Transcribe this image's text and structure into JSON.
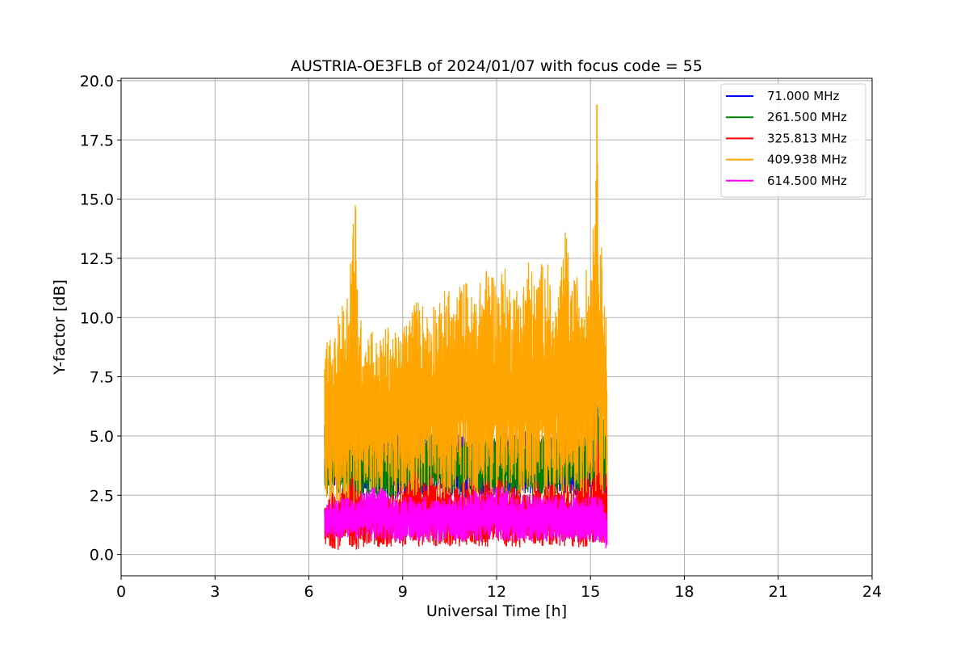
{
  "chart_data": {
    "type": "line",
    "title": "AUSTRIA-OE3FLB of 2024/01/07 with focus code = 55",
    "xlabel": "Universal Time [h]",
    "ylabel": "Y-factor [dB]",
    "xlim": [
      0,
      24
    ],
    "ylim": [
      -0.9,
      20.1
    ],
    "xticks": [
      0,
      3,
      6,
      9,
      12,
      15,
      18,
      21,
      24
    ],
    "xtick_labels": [
      "0",
      "3",
      "6",
      "9",
      "12",
      "15",
      "18",
      "21",
      "24"
    ],
    "yticks": [
      0,
      2.5,
      5,
      7.5,
      10,
      12.5,
      15,
      17.5,
      20
    ],
    "ytick_labels": [
      "0.0",
      "2.5",
      "5.0",
      "7.5",
      "10.0",
      "12.5",
      "15.0",
      "17.5",
      "20.0"
    ],
    "grid": true,
    "legend_position": "top-right",
    "series": [
      {
        "name": " 71.000 MHz",
        "color": "#0000ff",
        "x": [
          6.5,
          6.8,
          7.0,
          7.2,
          7.4,
          7.6,
          7.8,
          8.0,
          8.3,
          8.6,
          8.9,
          9.2,
          9.4,
          9.6,
          9.8,
          10.0,
          10.3,
          10.6,
          10.9,
          11.2,
          11.5,
          11.8,
          12.1,
          12.4,
          12.7,
          13.0,
          13.3,
          13.6,
          13.9,
          14.2,
          14.5,
          14.8,
          15.0,
          15.2,
          15.3,
          15.5
        ],
        "y_min": [
          2.5,
          2.8,
          2.6,
          3.0,
          2.2,
          2.4,
          2.5,
          2.7,
          2.3,
          2.2,
          2.4,
          2.3,
          2.6,
          2.5,
          2.4,
          2.8,
          2.6,
          2.4,
          2.3,
          2.6,
          2.5,
          2.4,
          2.6,
          2.5,
          2.3,
          2.6,
          2.5,
          2.4,
          2.7,
          2.6,
          2.5,
          2.6,
          2.7,
          2.8,
          2.7,
          2.5
        ],
        "y_max": [
          6.0,
          6.2,
          6.5,
          5.8,
          4.8,
          5.5,
          4.5,
          4.8,
          5.0,
          5.5,
          5.8,
          5.6,
          6.0,
          5.5,
          5.0,
          5.2,
          5.8,
          5.5,
          5.0,
          5.2,
          5.0,
          4.8,
          5.0,
          5.2,
          5.0,
          5.4,
          5.0,
          4.8,
          5.2,
          4.9,
          5.0,
          4.8,
          3.8,
          4.2,
          4.5,
          3.5
        ]
      },
      {
        "name": "261.500 MHz",
        "color": "#008000",
        "x": [
          6.5,
          7.0,
          7.5,
          8.0,
          8.5,
          9.0,
          9.5,
          10.0,
          10.5,
          11.0,
          11.5,
          12.0,
          12.5,
          13.0,
          13.5,
          14.0,
          14.5,
          15.0,
          15.2,
          15.5
        ],
        "y_min": [
          2.5,
          2.6,
          2.4,
          2.5,
          2.4,
          2.5,
          2.6,
          2.6,
          2.5,
          2.5,
          2.4,
          2.5,
          2.5,
          2.5,
          2.4,
          2.5,
          2.6,
          2.7,
          2.8,
          2.6
        ],
        "y_max": [
          5.5,
          5.8,
          5.2,
          5.0,
          5.0,
          5.2,
          5.4,
          5.2,
          5.0,
          5.0,
          5.0,
          5.0,
          5.0,
          5.0,
          5.0,
          5.0,
          5.0,
          5.5,
          6.8,
          5.5
        ]
      },
      {
        "name": "325.813 MHz",
        "color": "#ff0000",
        "x": [
          6.5,
          6.7,
          6.9,
          7.1,
          7.3,
          7.5,
          7.7,
          7.9,
          8.1,
          8.3,
          8.5,
          8.7,
          8.9,
          9.1,
          9.3,
          9.5,
          9.7,
          9.9,
          10.1,
          10.3,
          10.5,
          10.7,
          10.9,
          11.1,
          11.3,
          11.5,
          11.7,
          11.9,
          12.1,
          12.3,
          12.5,
          12.7,
          12.9,
          13.1,
          13.3,
          13.5,
          13.7,
          13.9,
          14.1,
          14.3,
          14.5,
          14.7,
          14.9,
          15.1,
          15.2,
          15.3,
          15.5
        ],
        "y_min": [
          0.2,
          0.3,
          0.2,
          0.3,
          0.3,
          0.2,
          0.3,
          0.4,
          0.3,
          0.3,
          0.2,
          0.4,
          0.3,
          0.4,
          0.4,
          0.3,
          0.4,
          0.4,
          0.3,
          0.3,
          0.3,
          0.4,
          0.3,
          0.4,
          0.4,
          0.3,
          0.3,
          0.4,
          0.4,
          0.3,
          0.3,
          0.3,
          0.4,
          0.4,
          0.3,
          0.4,
          0.4,
          0.3,
          0.3,
          0.3,
          0.3,
          0.3,
          0.3,
          0.4,
          0.4,
          0.3,
          0.3
        ],
        "y_max": [
          2.3,
          2.6,
          2.8,
          3.0,
          3.5,
          3.3,
          2.5,
          2.3,
          2.6,
          2.5,
          2.4,
          2.6,
          2.8,
          3.3,
          3.5,
          3.4,
          3.0,
          3.4,
          3.0,
          3.2,
          3.0,
          2.8,
          3.2,
          3.1,
          3.0,
          2.8,
          3.1,
          2.8,
          3.4,
          3.2,
          2.9,
          2.8,
          2.7,
          2.8,
          3.2,
          2.8,
          3.0,
          3.0,
          2.9,
          3.1,
          2.8,
          3.2,
          3.5,
          3.2,
          6.2,
          4.0,
          3.5
        ]
      },
      {
        "name": "409.938 MHz",
        "color": "#ffa500",
        "x": [
          6.5,
          6.6,
          6.8,
          7.0,
          7.2,
          7.35,
          7.45,
          7.6,
          7.8,
          8.0,
          8.2,
          8.4,
          8.6,
          8.8,
          9.0,
          9.2,
          9.4,
          9.6,
          9.8,
          10.0,
          10.2,
          10.4,
          10.6,
          10.8,
          11.0,
          11.2,
          11.4,
          11.6,
          11.8,
          12.0,
          12.2,
          12.4,
          12.6,
          12.8,
          13.0,
          13.2,
          13.4,
          13.6,
          13.8,
          14.0,
          14.2,
          14.4,
          14.6,
          14.8,
          15.0,
          15.1,
          15.2,
          15.3,
          15.4,
          15.5
        ],
        "y_min": [
          2.4,
          2.2,
          2.3,
          2.0,
          2.2,
          1.9,
          2.0,
          2.4,
          2.3,
          2.5,
          2.4,
          2.2,
          2.4,
          2.5,
          2.3,
          2.4,
          2.5,
          2.6,
          2.4,
          2.5,
          2.3,
          2.4,
          2.5,
          2.6,
          2.5,
          2.4,
          2.5,
          2.4,
          2.6,
          2.5,
          2.5,
          2.4,
          2.5,
          2.5,
          2.5,
          2.4,
          2.5,
          2.4,
          2.5,
          2.5,
          2.4,
          2.4,
          2.5,
          2.4,
          2.5,
          2.4,
          2.3,
          2.4,
          2.4,
          2.5
        ],
        "y_max": [
          8.3,
          9.2,
          9.0,
          10.5,
          11.0,
          13.5,
          15.0,
          10.2,
          9.5,
          9.7,
          8.9,
          9.5,
          9.8,
          9.2,
          9.6,
          10.3,
          10.8,
          10.7,
          10.3,
          10.9,
          10.6,
          11.6,
          10.5,
          11.4,
          11.7,
          11.0,
          11.3,
          12.0,
          12.4,
          11.5,
          12.3,
          11.6,
          11.4,
          11.3,
          12.8,
          11.5,
          12.3,
          12.6,
          10.3,
          11.4,
          13.7,
          11.4,
          12.0,
          11.9,
          12.5,
          15.2,
          19.1,
          14.5,
          12.1,
          10.0
        ]
      },
      {
        "name": "614.500 MHz",
        "color": "#ff00ff",
        "x": [
          6.5,
          6.7,
          6.9,
          7.1,
          7.3,
          7.5,
          7.7,
          7.9,
          8.1,
          8.3,
          8.5,
          8.7,
          8.9,
          9.1,
          9.3,
          9.5,
          9.7,
          9.9,
          10.1,
          10.3,
          10.5,
          10.7,
          10.9,
          11.1,
          11.3,
          11.5,
          11.7,
          11.9,
          12.1,
          12.3,
          12.5,
          12.7,
          12.9,
          13.1,
          13.3,
          13.5,
          13.7,
          13.9,
          14.1,
          14.3,
          14.5,
          14.7,
          14.9,
          15.1,
          15.3,
          15.5
        ],
        "y_min": [
          0.6,
          0.7,
          0.6,
          0.7,
          0.7,
          0.6,
          0.8,
          0.7,
          0.5,
          0.6,
          0.6,
          0.6,
          0.5,
          0.6,
          0.6,
          0.6,
          0.5,
          0.6,
          0.5,
          0.6,
          0.5,
          0.6,
          0.5,
          0.6,
          0.6,
          0.5,
          0.6,
          0.6,
          0.5,
          0.5,
          0.5,
          0.6,
          0.6,
          0.5,
          0.6,
          0.5,
          0.6,
          0.6,
          0.5,
          0.6,
          0.6,
          0.5,
          0.6,
          0.5,
          0.5,
          0.2
        ],
        "y_max": [
          2.0,
          2.2,
          2.3,
          2.5,
          2.4,
          2.2,
          2.6,
          2.7,
          2.9,
          2.8,
          2.6,
          2.4,
          2.3,
          2.5,
          2.4,
          2.3,
          2.5,
          2.4,
          2.3,
          2.4,
          2.5,
          2.4,
          2.5,
          2.6,
          2.7,
          2.6,
          2.7,
          2.8,
          2.9,
          2.8,
          2.7,
          2.6,
          2.5,
          2.6,
          2.5,
          2.4,
          2.5,
          2.6,
          2.5,
          2.4,
          2.5,
          2.4,
          2.6,
          2.5,
          2.4,
          2.2
        ]
      }
    ]
  }
}
